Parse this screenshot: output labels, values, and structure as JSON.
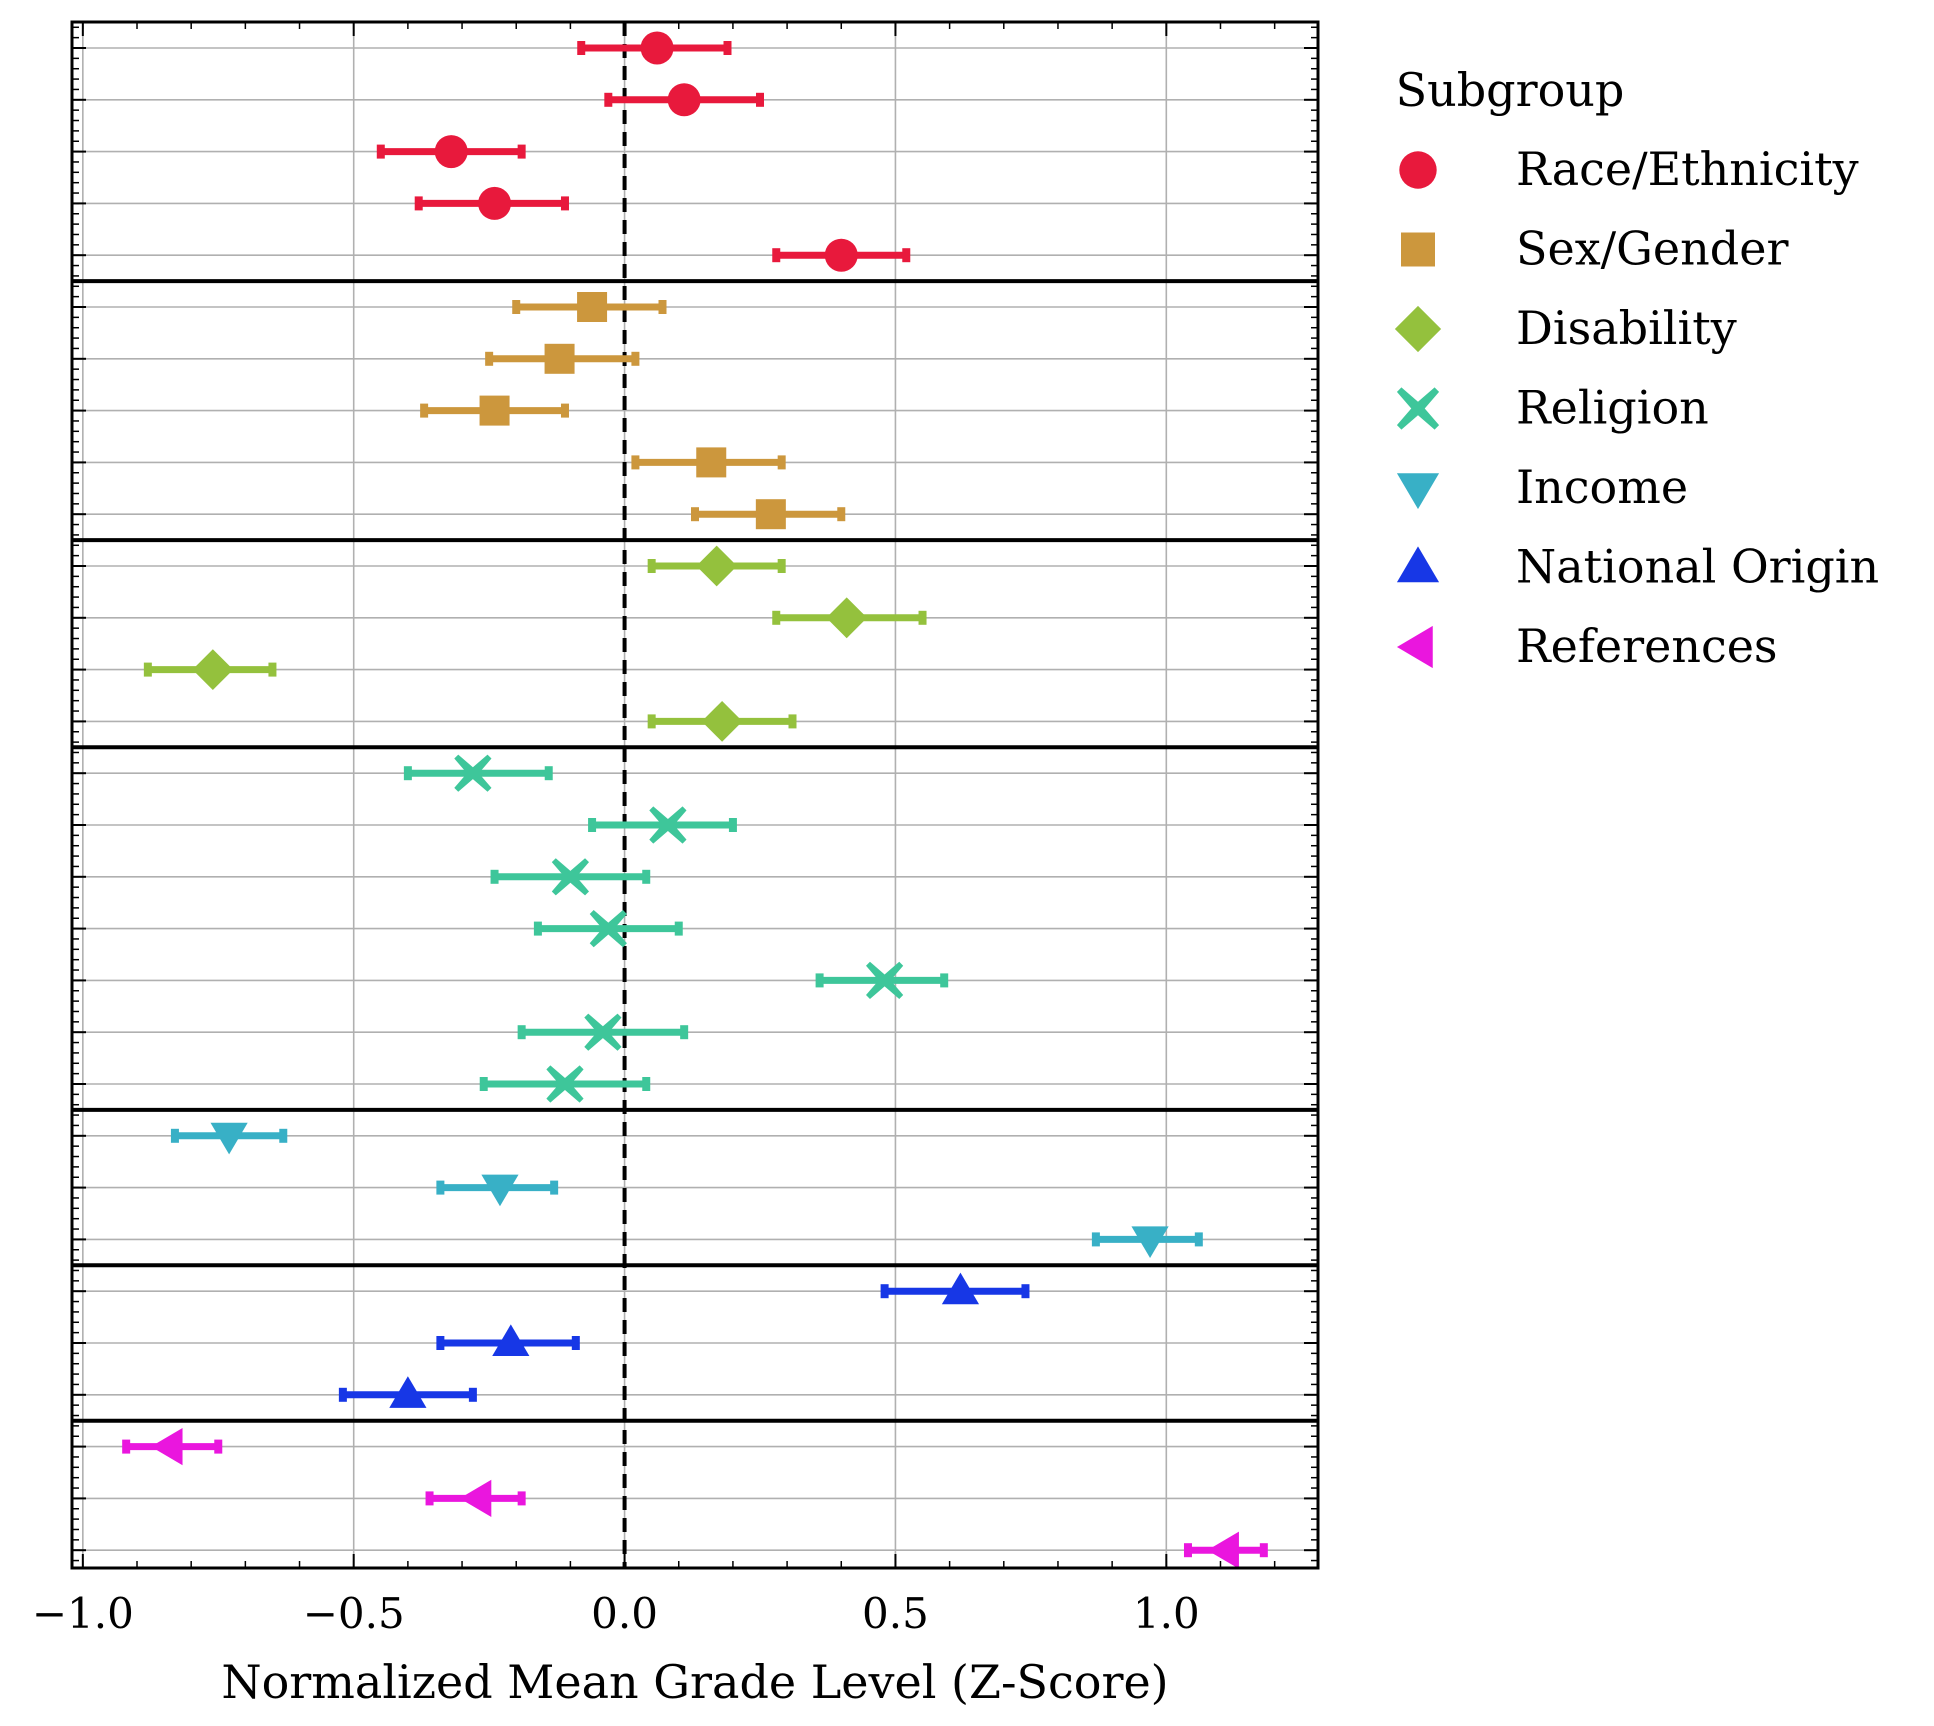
{
  "chart_data": {
    "type": "scatter",
    "subtype": "forest-plot",
    "title": "",
    "xlabel": "Normalized Mean Grade Level (Z-Score)",
    "ylabel": "",
    "xlim": [
      -1.02,
      1.28
    ],
    "xticks": [
      -1.0,
      -0.5,
      0.0,
      0.5,
      1.0
    ],
    "xtick_labels": [
      "−1.0",
      "−0.5",
      "0.0",
      "0.5",
      "1.0"
    ],
    "grid": true,
    "reference_line": 0.0,
    "legend": {
      "title": "Subgroup",
      "placement": "outside-right",
      "entries": [
        {
          "name": "Race/Ethnicity",
          "marker": "circle",
          "color": "#e8193c"
        },
        {
          "name": "Sex/Gender",
          "marker": "square",
          "color": "#cc973d"
        },
        {
          "name": "Disability",
          "marker": "diamond",
          "color": "#94c13d"
        },
        {
          "name": "Religion",
          "marker": "cross",
          "color": "#3ec69a"
        },
        {
          "name": "Income",
          "marker": "triangle-down",
          "color": "#38b0c6"
        },
        {
          "name": "National Origin",
          "marker": "triangle-up",
          "color": "#1737e6"
        },
        {
          "name": "References",
          "marker": "triangle-left",
          "color": "#ea16de"
        }
      ]
    },
    "series": [
      {
        "name": "Race/Ethnicity",
        "marker": "circle",
        "color": "#e8193c",
        "points": [
          {
            "mean": 0.06,
            "lo": -0.08,
            "hi": 0.19
          },
          {
            "mean": 0.11,
            "lo": -0.03,
            "hi": 0.25
          },
          {
            "mean": -0.32,
            "lo": -0.45,
            "hi": -0.19
          },
          {
            "mean": -0.24,
            "lo": -0.38,
            "hi": -0.11
          },
          {
            "mean": 0.4,
            "lo": 0.28,
            "hi": 0.52
          }
        ]
      },
      {
        "name": "Sex/Gender",
        "marker": "square",
        "color": "#cc973d",
        "points": [
          {
            "mean": -0.06,
            "lo": -0.2,
            "hi": 0.07
          },
          {
            "mean": -0.12,
            "lo": -0.25,
            "hi": 0.02
          },
          {
            "mean": -0.24,
            "lo": -0.37,
            "hi": -0.11
          },
          {
            "mean": 0.16,
            "lo": 0.02,
            "hi": 0.29
          },
          {
            "mean": 0.27,
            "lo": 0.13,
            "hi": 0.4
          }
        ]
      },
      {
        "name": "Disability",
        "marker": "diamond",
        "color": "#94c13d",
        "points": [
          {
            "mean": 0.17,
            "lo": 0.05,
            "hi": 0.29
          },
          {
            "mean": 0.41,
            "lo": 0.28,
            "hi": 0.55
          },
          {
            "mean": -0.76,
            "lo": -0.88,
            "hi": -0.65
          },
          {
            "mean": 0.18,
            "lo": 0.05,
            "hi": 0.31
          }
        ]
      },
      {
        "name": "Religion",
        "marker": "cross",
        "color": "#3ec69a",
        "points": [
          {
            "mean": -0.28,
            "lo": -0.4,
            "hi": -0.14
          },
          {
            "mean": 0.08,
            "lo": -0.06,
            "hi": 0.2
          },
          {
            "mean": -0.1,
            "lo": -0.24,
            "hi": 0.04
          },
          {
            "mean": -0.03,
            "lo": -0.16,
            "hi": 0.1
          },
          {
            "mean": 0.48,
            "lo": 0.36,
            "hi": 0.59
          },
          {
            "mean": -0.04,
            "lo": -0.19,
            "hi": 0.11
          },
          {
            "mean": -0.11,
            "lo": -0.26,
            "hi": 0.04
          }
        ]
      },
      {
        "name": "Income",
        "marker": "triangle-down",
        "color": "#38b0c6",
        "points": [
          {
            "mean": -0.73,
            "lo": -0.83,
            "hi": -0.63
          },
          {
            "mean": -0.23,
            "lo": -0.34,
            "hi": -0.13
          },
          {
            "mean": 0.97,
            "lo": 0.87,
            "hi": 1.06
          }
        ]
      },
      {
        "name": "National Origin",
        "marker": "triangle-up",
        "color": "#1737e6",
        "points": [
          {
            "mean": 0.62,
            "lo": 0.48,
            "hi": 0.74
          },
          {
            "mean": -0.21,
            "lo": -0.34,
            "hi": -0.09
          },
          {
            "mean": -0.4,
            "lo": -0.52,
            "hi": -0.28
          }
        ]
      },
      {
        "name": "References",
        "marker": "triangle-left",
        "color": "#ea16de",
        "points": [
          {
            "mean": -0.84,
            "lo": -0.92,
            "hi": -0.75
          },
          {
            "mean": -0.27,
            "lo": -0.36,
            "hi": -0.19
          },
          {
            "mean": 1.11,
            "lo": 1.04,
            "hi": 1.18
          }
        ]
      }
    ]
  }
}
